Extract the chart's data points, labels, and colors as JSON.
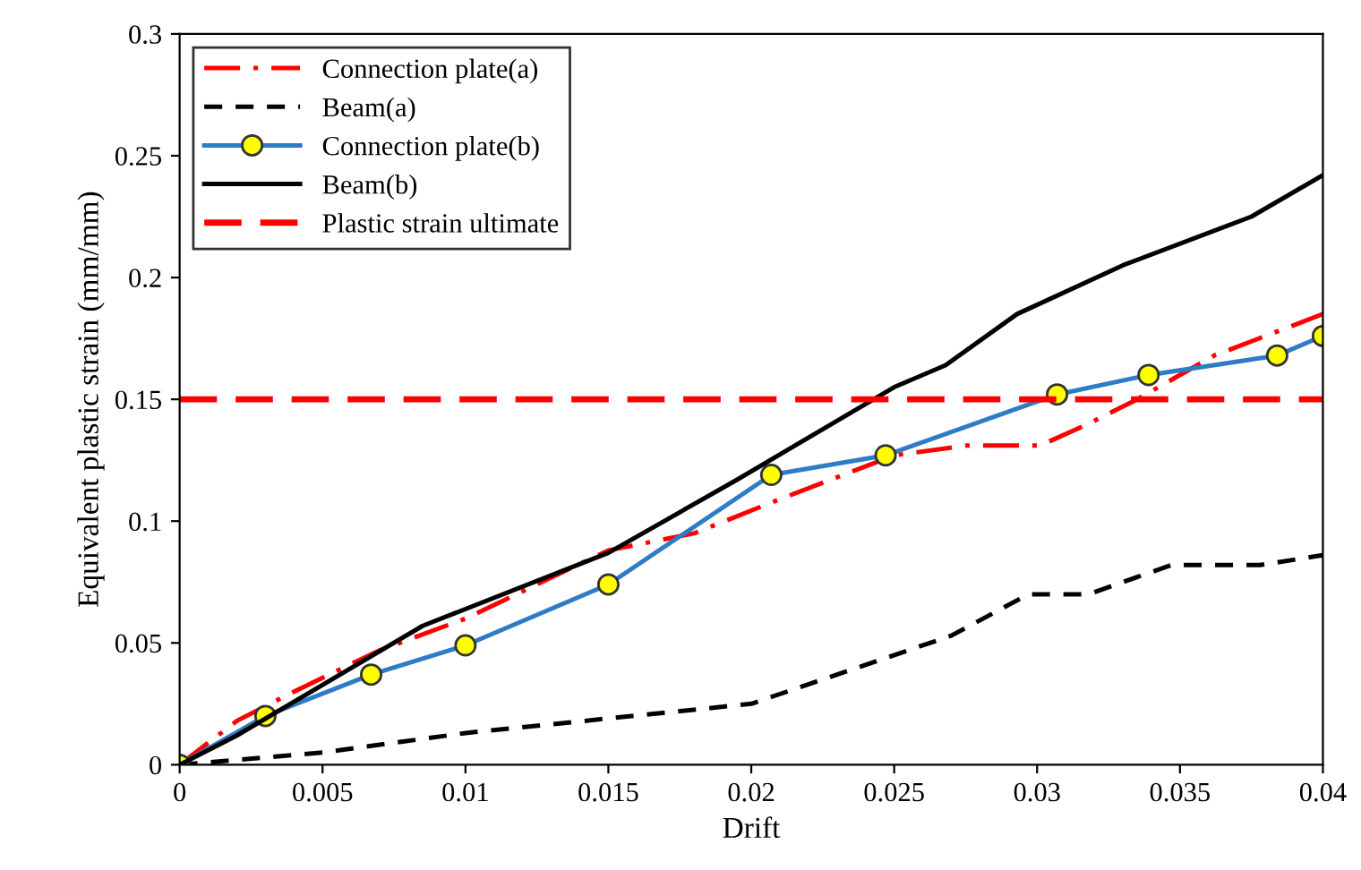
{
  "chart_data": {
    "type": "line",
    "xlabel": "Drift",
    "ylabel": "Equivalent plastic strain (mm/mm)",
    "xlim": [
      0,
      0.04
    ],
    "ylim": [
      0,
      0.3
    ],
    "xticks": [
      0,
      0.005,
      0.01,
      0.015,
      0.02,
      0.025,
      0.03,
      0.035,
      0.04
    ],
    "yticks": [
      0,
      0.05,
      0.1,
      0.15,
      0.2,
      0.25,
      0.3
    ],
    "grid": false,
    "legend": "top left",
    "series": [
      {
        "name": "Connection plate(a)",
        "color": "#ff0000",
        "line_style": "dashdot",
        "marker": "none",
        "x": [
          0,
          0.002,
          0.004,
          0.007,
          0.01,
          0.015,
          0.018,
          0.021,
          0.025,
          0.0275,
          0.0301,
          0.0318,
          0.0335,
          0.0362,
          0.04
        ],
        "values": [
          0,
          0.018,
          0.03,
          0.047,
          0.06,
          0.088,
          0.095,
          0.109,
          0.127,
          0.131,
          0.131,
          0.14,
          0.15,
          0.168,
          0.185
        ]
      },
      {
        "name": "Beam(a)",
        "color": "#000000",
        "line_style": "dashed",
        "marker": "none",
        "x": [
          0,
          0.005,
          0.01,
          0.015,
          0.02,
          0.0245,
          0.027,
          0.0297,
          0.0318,
          0.0347,
          0.0378,
          0.04
        ],
        "values": [
          0,
          0.005,
          0.013,
          0.019,
          0.025,
          0.043,
          0.053,
          0.07,
          0.07,
          0.082,
          0.082,
          0.086
        ]
      },
      {
        "name": "Connection plate(b)",
        "color": "#2e7bc6",
        "line_style": "solid",
        "marker": "circle",
        "x": [
          0,
          0.003,
          0.0067,
          0.01,
          0.015,
          0.0207,
          0.0247,
          0.0307,
          0.0339,
          0.0384,
          0.04
        ],
        "values": [
          0,
          0.02,
          0.037,
          0.049,
          0.074,
          0.119,
          0.127,
          0.152,
          0.16,
          0.168,
          0.176
        ]
      },
      {
        "name": "Beam(b)",
        "color": "#000000",
        "line_style": "solid",
        "marker": "none",
        "x": [
          0,
          0.002,
          0.0085,
          0.015,
          0.0195,
          0.025,
          0.0268,
          0.0293,
          0.033,
          0.0375,
          0.04
        ],
        "values": [
          0,
          0.012,
          0.057,
          0.087,
          0.117,
          0.155,
          0.164,
          0.185,
          0.205,
          0.225,
          0.242
        ]
      }
    ],
    "ref_lines": [
      {
        "axis": "y",
        "value": 0.15,
        "label": "Plastic strain ultimate",
        "color": "#ff0000",
        "line_style": "dashed"
      }
    ]
  }
}
